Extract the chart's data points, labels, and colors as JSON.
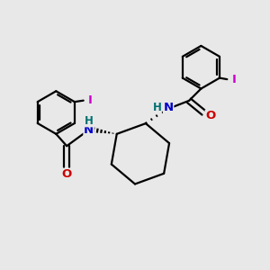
{
  "background_color": "#e8e8e8",
  "bond_color": "#000000",
  "bond_width": 1.6,
  "atom_colors": {
    "I": "#cc00cc",
    "N": "#0000cc",
    "O": "#cc0000",
    "H": "#007070",
    "C": "#000000"
  }
}
